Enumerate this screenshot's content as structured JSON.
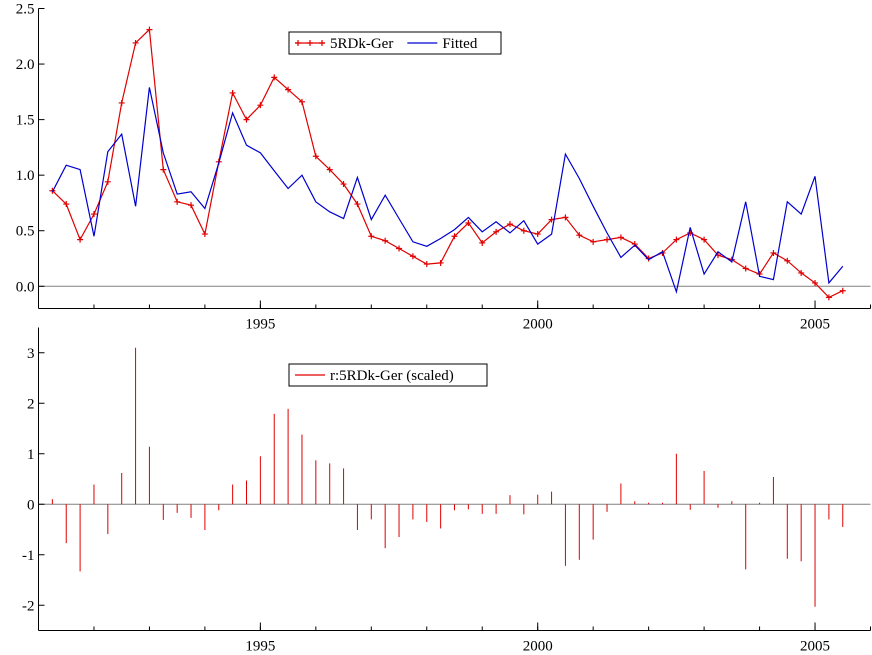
{
  "chart_data": [
    {
      "type": "line",
      "title": "",
      "xlabel": "",
      "ylabel": "",
      "xlim": [
        1991.0,
        2006.0
      ],
      "ylim": [
        -0.2,
        2.5
      ],
      "xticks": [
        1995,
        2000,
        2005
      ],
      "xtick_labels": [
        "1995",
        "2000",
        "2005"
      ],
      "yticks": [
        0.0,
        0.5,
        1.0,
        1.5,
        2.0,
        2.5
      ],
      "ytick_labels": [
        "0.0",
        "0.5",
        "1.0",
        "1.5",
        "2.0",
        "2.5"
      ],
      "zero_line": true,
      "grid": false,
      "legend": "top-center",
      "x": [
        1991.25,
        1991.5,
        1991.75,
        1992.0,
        1992.25,
        1992.5,
        1992.75,
        1993.0,
        1993.25,
        1993.5,
        1993.75,
        1994.0,
        1994.25,
        1994.5,
        1994.75,
        1995.0,
        1995.25,
        1995.5,
        1995.75,
        1996.0,
        1996.25,
        1996.5,
        1996.75,
        1997.0,
        1997.25,
        1997.5,
        1997.75,
        1998.0,
        1998.25,
        1998.5,
        1998.75,
        1999.0,
        1999.25,
        1999.5,
        1999.75,
        2000.0,
        2000.25,
        2000.5,
        2000.75,
        2001.0,
        2001.25,
        2001.5,
        2001.75,
        2002.0,
        2002.25,
        2002.5,
        2002.75,
        2003.0,
        2003.25,
        2003.5,
        2003.75,
        2004.0,
        2004.25,
        2004.5,
        2004.75,
        2005.0,
        2005.25,
        2005.5
      ],
      "series": [
        {
          "name": "5RDk-Ger",
          "color": "#e00000",
          "marker": "plus",
          "values": [
            0.86,
            0.74,
            0.42,
            0.65,
            0.94,
            1.65,
            2.19,
            2.31,
            1.05,
            0.76,
            0.73,
            0.47,
            1.12,
            1.74,
            1.5,
            1.63,
            1.88,
            1.77,
            1.66,
            1.17,
            1.05,
            0.92,
            0.74,
            0.45,
            0.41,
            0.34,
            0.27,
            0.2,
            0.21,
            0.45,
            0.57,
            0.39,
            0.49,
            0.56,
            0.5,
            0.47,
            0.6,
            0.62,
            0.46,
            0.4,
            0.42,
            0.44,
            0.38,
            0.25,
            0.3,
            0.42,
            0.48,
            0.42,
            0.28,
            0.24,
            0.16,
            0.11,
            0.3,
            0.23,
            0.12,
            0.03,
            -0.1,
            -0.04
          ]
        },
        {
          "name": "Fitted",
          "color": "#0000d0",
          "marker": "none",
          "values": [
            0.85,
            1.09,
            1.05,
            0.45,
            1.21,
            1.37,
            0.72,
            1.79,
            1.2,
            0.83,
            0.85,
            0.7,
            1.11,
            1.56,
            1.27,
            1.2,
            1.04,
            0.88,
            1.0,
            0.76,
            0.67,
            0.61,
            0.98,
            0.6,
            0.82,
            0.61,
            0.4,
            0.36,
            0.43,
            0.51,
            0.62,
            0.49,
            0.58,
            0.48,
            0.59,
            0.38,
            0.47,
            1.19,
            0.97,
            0.72,
            0.48,
            0.26,
            0.37,
            0.24,
            0.31,
            -0.05,
            0.53,
            0.11,
            0.31,
            0.22,
            0.76,
            0.09,
            0.06,
            0.76,
            0.65,
            0.99,
            0.03,
            0.18
          ]
        }
      ]
    },
    {
      "type": "bar",
      "title": "",
      "xlabel": "",
      "ylabel": "",
      "xlim": [
        1991.0,
        2006.0
      ],
      "ylim": [
        -2.5,
        3.5
      ],
      "xticks": [
        1995,
        2000,
        2005
      ],
      "xtick_labels": [
        "1995",
        "2000",
        "2005"
      ],
      "yticks": [
        -2,
        -1,
        0,
        1,
        2,
        3
      ],
      "ytick_labels": [
        "-2",
        "-1",
        "0",
        "1",
        "2",
        "3"
      ],
      "zero_line": true,
      "grid": false,
      "legend": "top-center",
      "x": [
        1991.25,
        1991.5,
        1991.75,
        1992.0,
        1992.25,
        1992.5,
        1992.75,
        1993.0,
        1993.25,
        1993.5,
        1993.75,
        1994.0,
        1994.25,
        1994.5,
        1994.75,
        1995.0,
        1995.25,
        1995.5,
        1995.75,
        1996.0,
        1996.25,
        1996.5,
        1996.75,
        1997.0,
        1997.25,
        1997.5,
        1997.75,
        1998.0,
        1998.25,
        1998.5,
        1998.75,
        1999.0,
        1999.25,
        1999.5,
        1999.75,
        2000.0,
        2000.25,
        2000.5,
        2000.75,
        2001.0,
        2001.25,
        2001.5,
        2001.75,
        2002.0,
        2002.25,
        2002.5,
        2002.75,
        2003.0,
        2003.25,
        2003.5,
        2003.75,
        2004.0,
        2004.25,
        2004.5,
        2004.75,
        2005.0,
        2005.25,
        2005.5
      ],
      "series": [
        {
          "name": "r:5RDk-Ger (scaled)",
          "color": "#e00000",
          "marker": "spike",
          "values": [
            0.1,
            -0.77,
            -1.33,
            0.39,
            -0.59,
            0.62,
            3.1,
            1.14,
            -0.31,
            -0.17,
            -0.27,
            -0.51,
            -0.12,
            0.39,
            0.47,
            0.95,
            1.79,
            1.89,
            1.38,
            0.87,
            0.81,
            0.71,
            -0.51,
            -0.3,
            -0.87,
            -0.65,
            -0.3,
            -0.35,
            -0.48,
            -0.12,
            -0.1,
            -0.19,
            -0.19,
            0.18,
            -0.2,
            0.19,
            0.25,
            -1.22,
            -1.1,
            -0.7,
            -0.15,
            0.41,
            0.06,
            0.03,
            0.03,
            1.0,
            -0.11,
            0.66,
            -0.07,
            0.06,
            -1.29,
            0.03,
            0.54,
            -1.08,
            -1.13,
            -2.03,
            -0.3,
            -0.45
          ]
        }
      ]
    }
  ]
}
